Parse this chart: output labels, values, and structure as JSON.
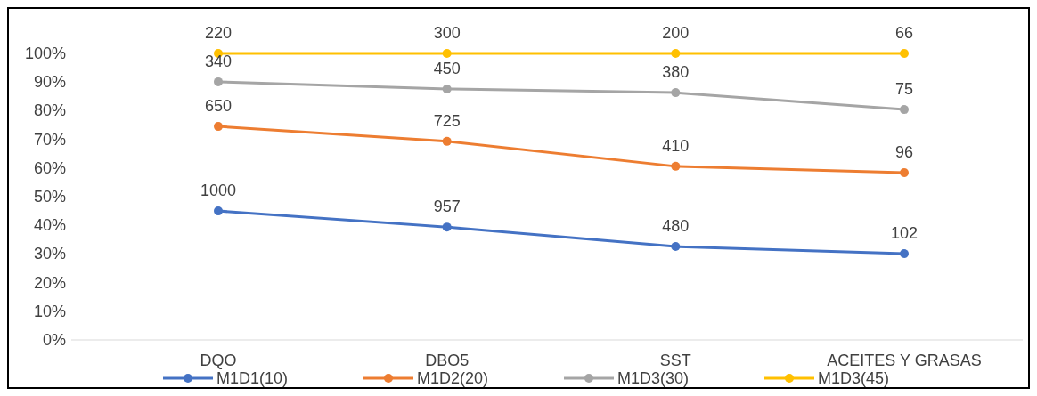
{
  "chart_data": {
    "type": "line",
    "categories": [
      "DQO",
      "DBO5",
      "SST",
      "ACEITES Y GRASAS"
    ],
    "series": [
      {
        "name": "M1D1(10)",
        "color": "#4472c4",
        "values": [
          45,
          39.4,
          32.6,
          30.1
        ]
      },
      {
        "name": "M1D2(20)",
        "color": "#ed7d31",
        "values": [
          74.5,
          69.3,
          60.6,
          58.4
        ]
      },
      {
        "name": "M1D3(30)",
        "color": "#a5a5a5",
        "values": [
          90.1,
          87.6,
          86.3,
          80.4
        ]
      },
      {
        "name": "M1D3(45)",
        "color": "#ffc000",
        "values": [
          100,
          100,
          100,
          100
        ]
      }
    ],
    "annotations": [
      {
        "text": "1000",
        "x": "DQO",
        "y": 45
      },
      {
        "text": "957",
        "x": "DBO5",
        "y": 39.4
      },
      {
        "text": "480",
        "x": "SST",
        "y": 32.6
      },
      {
        "text": "102",
        "x": "ACEITES Y GRASAS",
        "y": 30.1
      },
      {
        "text": "650",
        "x": "DQO",
        "y": 74.5
      },
      {
        "text": "725",
        "x": "DBO5",
        "y": 69.3
      },
      {
        "text": "410",
        "x": "SST",
        "y": 60.6
      },
      {
        "text": "96",
        "x": "ACEITES Y GRASAS",
        "y": 58.4
      },
      {
        "text": "340",
        "x": "DQO",
        "y": 90.1
      },
      {
        "text": "450",
        "x": "DBO5",
        "y": 87.6
      },
      {
        "text": "380",
        "x": "SST",
        "y": 86.3
      },
      {
        "text": "75",
        "x": "ACEITES Y GRASAS",
        "y": 80.4
      },
      {
        "text": "220",
        "x": "DQO",
        "y": 100
      },
      {
        "text": "300",
        "x": "DBO5",
        "y": 100
      },
      {
        "text": "200",
        "x": "SST",
        "y": 100
      },
      {
        "text": "66",
        "x": "ACEITES Y GRASAS",
        "y": 100
      }
    ],
    "ylim": [
      0,
      100
    ],
    "yticks": [
      {
        "value": 0,
        "label": "0%"
      },
      {
        "value": 10,
        "label": "10%"
      },
      {
        "value": 20,
        "label": "20%"
      },
      {
        "value": 30,
        "label": "30%"
      },
      {
        "value": 40,
        "label": "40%"
      },
      {
        "value": 50,
        "label": "50%"
      },
      {
        "value": 60,
        "label": "60%"
      },
      {
        "value": 70,
        "label": "70%"
      },
      {
        "value": 80,
        "label": "80%"
      },
      {
        "value": 90,
        "label": "90%"
      },
      {
        "value": 100,
        "label": "100%"
      }
    ],
    "grid": false,
    "legend": "bottom",
    "marker": "circle",
    "line_style": "solid"
  }
}
